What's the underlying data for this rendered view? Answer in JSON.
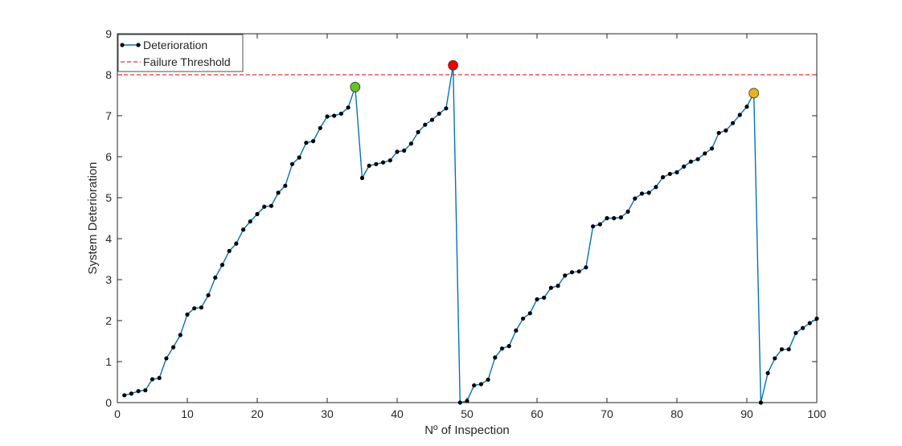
{
  "chart_data": {
    "type": "line",
    "title": "",
    "xlabel": "Nº of Inspection",
    "ylabel": "System Deterioration",
    "xlim": [
      0,
      100
    ],
    "ylim": [
      0,
      9
    ],
    "xticks": [
      0,
      10,
      20,
      30,
      40,
      50,
      60,
      70,
      80,
      90,
      100
    ],
    "yticks": [
      0,
      1,
      2,
      3,
      4,
      5,
      6,
      7,
      8,
      9
    ],
    "grid": false,
    "legend_position": "top-left",
    "series": [
      {
        "name": "Deterioration",
        "color": "#0072BD",
        "marker_color": "#000000",
        "x": [
          1,
          2,
          3,
          4,
          5,
          6,
          7,
          8,
          9,
          10,
          11,
          12,
          13,
          14,
          15,
          16,
          17,
          18,
          19,
          20,
          21,
          22,
          23,
          24,
          25,
          26,
          27,
          28,
          29,
          30,
          31,
          32,
          33,
          34,
          35,
          36,
          37,
          38,
          39,
          40,
          41,
          42,
          43,
          44,
          45,
          46,
          47,
          48,
          49,
          50,
          51,
          52,
          53,
          54,
          55,
          56,
          57,
          58,
          59,
          60,
          61,
          62,
          63,
          64,
          65,
          66,
          67,
          68,
          69,
          70,
          71,
          72,
          73,
          74,
          75,
          76,
          77,
          78,
          79,
          80,
          81,
          82,
          83,
          84,
          85,
          86,
          87,
          88,
          89,
          90,
          91,
          92,
          93,
          94,
          95,
          96,
          97,
          98,
          99,
          100
        ],
        "values": [
          0.18,
          0.22,
          0.28,
          0.3,
          0.57,
          0.6,
          1.08,
          1.35,
          1.65,
          2.15,
          2.3,
          2.32,
          2.62,
          3.05,
          3.36,
          3.7,
          3.88,
          4.22,
          4.42,
          4.6,
          4.78,
          4.8,
          5.12,
          5.29,
          5.82,
          5.98,
          6.34,
          6.38,
          6.7,
          6.98,
          7.0,
          7.05,
          7.2,
          7.7,
          5.48,
          5.78,
          5.82,
          5.86,
          5.91,
          6.12,
          6.15,
          6.32,
          6.6,
          6.78,
          6.9,
          7.05,
          7.18,
          8.23,
          0.0,
          0.04,
          0.42,
          0.45,
          0.56,
          1.1,
          1.32,
          1.38,
          1.76,
          2.05,
          2.18,
          2.52,
          2.56,
          2.8,
          2.85,
          3.1,
          3.18,
          3.2,
          3.3,
          4.3,
          4.35,
          4.5,
          4.5,
          4.52,
          4.66,
          4.98,
          5.1,
          5.12,
          5.26,
          5.5,
          5.58,
          5.62,
          5.76,
          5.88,
          5.94,
          6.08,
          6.2,
          6.58,
          6.64,
          6.82,
          7.02,
          7.22,
          7.55,
          0.0,
          0.72,
          1.08,
          1.3,
          1.3,
          1.7,
          1.82,
          1.94,
          2.05
        ]
      },
      {
        "name": "Failure Threshold",
        "color": "#E0303A",
        "style": "dashed",
        "value": 8
      }
    ],
    "highlights": [
      {
        "x": 34,
        "y": 7.7,
        "color": "#62C426"
      },
      {
        "x": 48,
        "y": 8.23,
        "color": "#F00000"
      },
      {
        "x": 91,
        "y": 7.55,
        "color": "#EDB120"
      }
    ]
  }
}
